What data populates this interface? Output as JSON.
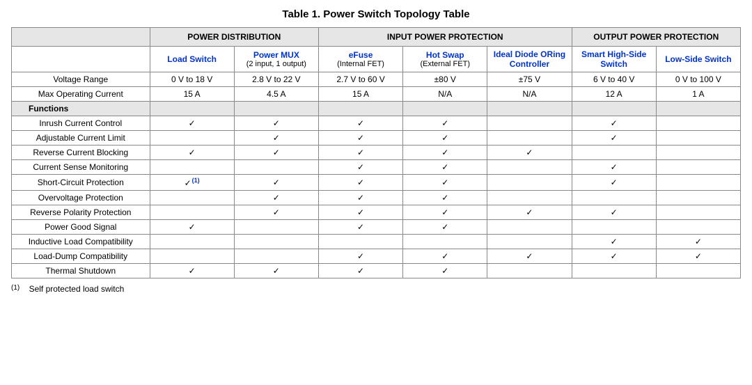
{
  "title": "Table 1. Power Switch Topology Table",
  "colors": {
    "header_bg": "#e6e6e6",
    "link_blue": "#0033cc",
    "border": "#888888",
    "text": "#000000",
    "bg": "#ffffff"
  },
  "groups": [
    {
      "label": "POWER DISTRIBUTION",
      "span": 2
    },
    {
      "label": "INPUT POWER PROTECTION",
      "span": 3
    },
    {
      "label": "OUTPUT POWER PROTECTION",
      "span": 2
    }
  ],
  "columns": [
    {
      "label": "Load Switch",
      "sub": ""
    },
    {
      "label": "Power MUX",
      "sub": "(2 input, 1 output)"
    },
    {
      "label": "eFuse",
      "sub": "(Internal FET)"
    },
    {
      "label": "Hot Swap",
      "sub": "(External FET)"
    },
    {
      "label": "Ideal Diode ORing Controller",
      "sub": ""
    },
    {
      "label": "Smart High-Side Switch",
      "sub": ""
    },
    {
      "label": "Low-Side Switch",
      "sub": ""
    }
  ],
  "spec_rows": [
    {
      "label": "Voltage Range",
      "cells": [
        "0 V to 18 V",
        "2.8 V to 22 V",
        "2.7 V to 60 V",
        "±80 V",
        "±75 V",
        "6 V to 40 V",
        "0 V to 100 V"
      ]
    },
    {
      "label": "Max Operating Current",
      "cells": [
        "15 A",
        "4.5 A",
        "15 A",
        "N/A",
        "N/A",
        "12 A",
        "1 A"
      ]
    }
  ],
  "section_label": "Functions",
  "check": "✓",
  "fn_marker": "(1)",
  "function_rows": [
    {
      "label": "Inrush Current Control",
      "cells": [
        "c",
        "c",
        "c",
        "c",
        "",
        "c",
        ""
      ]
    },
    {
      "label": "Adjustable Current Limit",
      "cells": [
        "",
        "c",
        "c",
        "c",
        "",
        "c",
        ""
      ]
    },
    {
      "label": "Reverse Current Blocking",
      "cells": [
        "c",
        "c",
        "c",
        "c",
        "c",
        "",
        ""
      ]
    },
    {
      "label": "Current Sense Monitoring",
      "cells": [
        "",
        "",
        "c",
        "c",
        "",
        "c",
        ""
      ]
    },
    {
      "label": "Short-Circuit Protection",
      "cells": [
        "c1",
        "c",
        "c",
        "c",
        "",
        "c",
        ""
      ]
    },
    {
      "label": "Overvoltage Protection",
      "cells": [
        "",
        "c",
        "c",
        "c",
        "",
        "",
        ""
      ]
    },
    {
      "label": "Reverse Polarity Protection",
      "cells": [
        "",
        "c",
        "c",
        "c",
        "c",
        "c",
        ""
      ]
    },
    {
      "label": "Power Good Signal",
      "cells": [
        "c",
        "",
        "c",
        "c",
        "",
        "",
        ""
      ]
    },
    {
      "label": "Inductive Load Compatibility",
      "cells": [
        "",
        "",
        "",
        "",
        "",
        "c",
        "c"
      ]
    },
    {
      "label": "Load-Dump Compatibility",
      "cells": [
        "",
        "",
        "c",
        "c",
        "c",
        "c",
        "c"
      ]
    },
    {
      "label": "Thermal Shutdown",
      "cells": [
        "c",
        "c",
        "c",
        "c",
        "",
        "",
        ""
      ]
    }
  ],
  "footnote": {
    "marker": "(1)",
    "text": "Self protected load switch"
  }
}
